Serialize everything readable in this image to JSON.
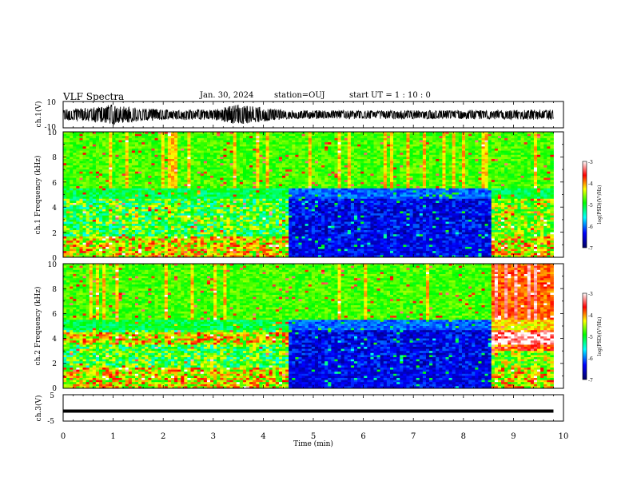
{
  "header": {
    "title": "VLF Spectra",
    "date": "Jan. 30, 2024",
    "station": "station=OUJ",
    "start_ut": "start UT =  1 : 10 : 0"
  },
  "chart_data": [
    {
      "type": "line",
      "panel": "ch1-waveform",
      "ylabel": "ch.1(V)",
      "ylim": [
        -10,
        10
      ],
      "yticks": [
        "10",
        "-10"
      ],
      "xlim": [
        0,
        10
      ],
      "x": [
        0,
        0.3,
        0.5,
        1.0,
        1.2,
        1.5,
        2.0,
        3.0,
        3.5,
        3.8,
        4.0,
        4.5,
        6.0,
        8.0,
        9.5,
        9.8
      ],
      "envelope": [
        3,
        4,
        4,
        6,
        5,
        4,
        3,
        3,
        6,
        5,
        4,
        2.5,
        2.5,
        2.5,
        3,
        3
      ]
    },
    {
      "type": "heatmap",
      "panel": "ch1-spectrogram",
      "ylabel": "ch.1 Frequency (kHz)",
      "ylim": [
        0,
        10
      ],
      "yticks": [
        "0",
        "2",
        "4",
        "6",
        "8",
        "10"
      ],
      "xlim": [
        0,
        10
      ],
      "x_segments": [
        0,
        1.8,
        3.1,
        3.5,
        4.5,
        8.5,
        9.8
      ],
      "colorbar": {
        "label": "log(PSD)(V²/Hz)",
        "range": [
          -7,
          -3
        ],
        "ticks": [
          "-3",
          "-4",
          "-5",
          "-6",
          "-7"
        ],
        "colors": [
          "#000080",
          "#0000ff",
          "#00ffff",
          "#00ff00",
          "#ffff00",
          "#ff0000",
          "#ffffff"
        ]
      }
    },
    {
      "type": "heatmap",
      "panel": "ch2-spectrogram",
      "ylabel": "ch.2 Frequency (kHz)",
      "ylim": [
        0,
        10
      ],
      "yticks": [
        "0",
        "2",
        "4",
        "6",
        "8",
        "10"
      ],
      "xlim": [
        0,
        10
      ],
      "x_segments": [
        0,
        1.8,
        3.1,
        3.5,
        4.5,
        8.5,
        9.8
      ],
      "colorbar": {
        "label": "log(PSD)(V²/Hz)",
        "range": [
          -7,
          -3
        ],
        "ticks": [
          "-3",
          "-4",
          "-5",
          "-6",
          "-7"
        ]
      }
    },
    {
      "type": "line",
      "panel": "ch3-waveform",
      "ylabel": "ch.3(V)",
      "ylim": [
        -5,
        5
      ],
      "yticks": [
        "5",
        "-5"
      ],
      "xlim": [
        0,
        10
      ],
      "x": [
        0,
        9.8
      ],
      "y": [
        -1.2,
        -1.2
      ]
    }
  ],
  "xaxis": {
    "label": "Time (min)",
    "ticks": [
      "0",
      "1",
      "2",
      "3",
      "4",
      "5",
      "6",
      "7",
      "8",
      "9",
      "10"
    ]
  }
}
